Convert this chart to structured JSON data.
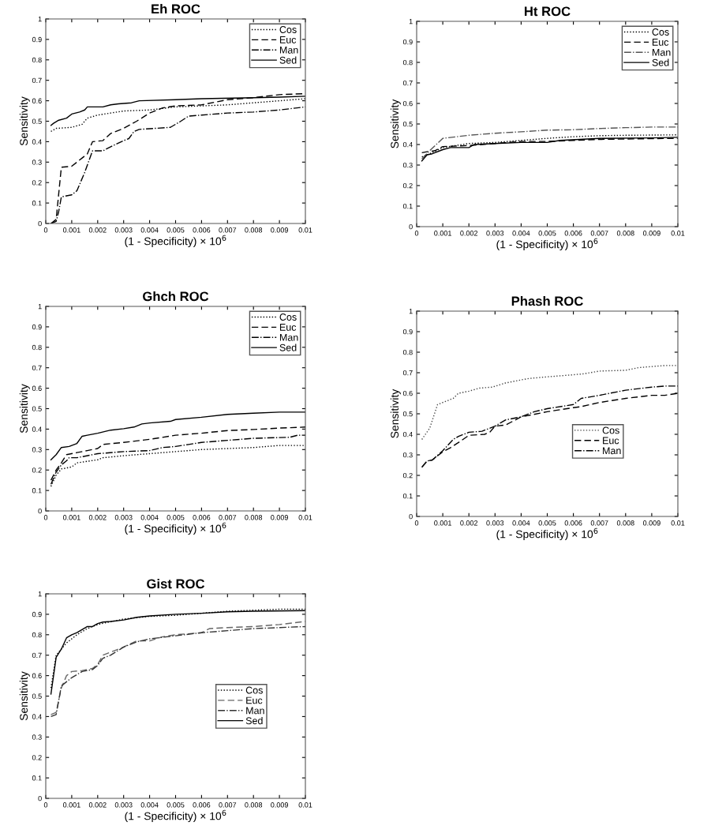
{
  "chart_data": [
    {
      "type": "line",
      "title": "Eh ROC",
      "xlabel": "(1 - Specificity) × 10$^{6}$",
      "ylabel": "Sensitivity",
      "xlim": [
        0,
        0.01
      ],
      "ylim": [
        0,
        1
      ],
      "xticks": [
        0,
        0.001,
        0.002,
        0.003,
        0.004,
        0.005,
        0.006,
        0.007,
        0.008,
        0.009,
        0.01
      ],
      "yticks": [
        0,
        0.1,
        0.2,
        0.3,
        0.4,
        0.5,
        0.6,
        0.7,
        0.8,
        0.9,
        1
      ],
      "legend": "top right",
      "series": [
        {
          "name": "Cos",
          "color": "#000000",
          "line_style": "dotted",
          "x": [
            0.0002,
            0.0004,
            0.001,
            0.0014,
            0.0016,
            0.002,
            0.0025,
            0.003,
            0.004,
            0.005,
            0.006,
            0.007,
            0.008,
            0.009,
            0.01
          ],
          "values": [
            0.45,
            0.465,
            0.47,
            0.485,
            0.515,
            0.53,
            0.54,
            0.55,
            0.555,
            0.57,
            0.575,
            0.58,
            0.59,
            0.6,
            0.61
          ]
        },
        {
          "name": "Euc",
          "color": "#000000",
          "line_style": "dashed",
          "x": [
            0.0002,
            0.0004,
            0.0006,
            0.001,
            0.0014,
            0.0016,
            0.0018,
            0.0022,
            0.0025,
            0.003,
            0.0035,
            0.004,
            0.0045,
            0.005,
            0.006,
            0.007,
            0.008,
            0.009,
            0.01
          ],
          "values": [
            0,
            0.02,
            0.275,
            0.28,
            0.32,
            0.34,
            0.4,
            0.405,
            0.44,
            0.465,
            0.5,
            0.54,
            0.565,
            0.575,
            0.58,
            0.605,
            0.615,
            0.63,
            0.635
          ]
        },
        {
          "name": "Man",
          "color": "#000000",
          "line_style": "dashdot",
          "x": [
            0.0002,
            0.0004,
            0.0005,
            0.0006,
            0.001,
            0.0012,
            0.0015,
            0.0018,
            0.0022,
            0.0025,
            0.003,
            0.0032,
            0.0034,
            0.0036,
            0.0048,
            0.0052,
            0.0055,
            0.006,
            0.007,
            0.008,
            0.009,
            0.01
          ],
          "values": [
            0,
            0.01,
            0.06,
            0.13,
            0.14,
            0.16,
            0.25,
            0.355,
            0.355,
            0.375,
            0.405,
            0.415,
            0.45,
            0.46,
            0.47,
            0.5,
            0.525,
            0.53,
            0.54,
            0.545,
            0.555,
            0.57
          ]
        },
        {
          "name": "Sed",
          "color": "#000000",
          "line_style": "solid",
          "x": [
            0.0002,
            0.0003,
            0.0005,
            0.0008,
            0.001,
            0.0013,
            0.0015,
            0.0016,
            0.0022,
            0.0025,
            0.0028,
            0.0033,
            0.0036,
            0.005,
            0.006,
            0.008,
            0.009,
            0.01
          ],
          "values": [
            0.48,
            0.49,
            0.505,
            0.515,
            0.535,
            0.545,
            0.555,
            0.57,
            0.57,
            0.58,
            0.585,
            0.59,
            0.6,
            0.605,
            0.61,
            0.615,
            0.618,
            0.622
          ]
        }
      ]
    },
    {
      "type": "line",
      "title": "Ht ROC",
      "xlabel": "(1 - Specificity) × 10$^{6}$",
      "ylabel": "Sensitivity",
      "xlim": [
        0,
        0.01
      ],
      "ylim": [
        0,
        1
      ],
      "xticks": [
        0,
        0.001,
        0.002,
        0.003,
        0.004,
        0.005,
        0.006,
        0.007,
        0.008,
        0.009,
        0.01
      ],
      "yticks": [
        0,
        0.1,
        0.2,
        0.3,
        0.4,
        0.5,
        0.6,
        0.7,
        0.8,
        0.9,
        1
      ],
      "legend": "top right",
      "series": [
        {
          "name": "Cos",
          "color": "#000000",
          "line_style": "dotted",
          "x": [
            0.0002,
            0.0005,
            0.001,
            0.0015,
            0.002,
            0.003,
            0.004,
            0.005,
            0.006,
            0.007,
            0.008,
            0.01
          ],
          "values": [
            0.34,
            0.355,
            0.385,
            0.395,
            0.405,
            0.41,
            0.42,
            0.43,
            0.438,
            0.443,
            0.445,
            0.447
          ]
        },
        {
          "name": "Euc",
          "color": "#000000",
          "line_style": "dashed",
          "x": [
            0.0002,
            0.0004,
            0.0007,
            0.001,
            0.002,
            0.003,
            0.004,
            0.005,
            0.006,
            0.007,
            0.008,
            0.01
          ],
          "values": [
            0.36,
            0.365,
            0.37,
            0.39,
            0.395,
            0.405,
            0.415,
            0.415,
            0.42,
            0.425,
            0.427,
            0.43
          ]
        },
        {
          "name": "Man",
          "color": "#555555",
          "line_style": "dashdot",
          "x": [
            0.0002,
            0.0005,
            0.001,
            0.002,
            0.003,
            0.004,
            0.005,
            0.006,
            0.007,
            0.008,
            0.009,
            0.01
          ],
          "values": [
            0.33,
            0.37,
            0.43,
            0.445,
            0.455,
            0.462,
            0.47,
            0.472,
            0.478,
            0.482,
            0.485,
            0.485
          ]
        },
        {
          "name": "Sed",
          "color": "#000000",
          "line_style": "solid",
          "x": [
            0.0002,
            0.0004,
            0.0006,
            0.001,
            0.0013,
            0.002,
            0.0022,
            0.003,
            0.004,
            0.005,
            0.0055,
            0.007,
            0.009,
            0.01
          ],
          "values": [
            0.32,
            0.35,
            0.355,
            0.375,
            0.385,
            0.385,
            0.4,
            0.405,
            0.41,
            0.41,
            0.42,
            0.43,
            0.432,
            0.435
          ]
        }
      ]
    },
    {
      "type": "line",
      "title": "Ghch ROC",
      "xlabel": "(1 - Specificity) × 10$^{6}$",
      "ylabel": "Sensitivity",
      "xlim": [
        0,
        0.01
      ],
      "ylim": [
        0,
        1
      ],
      "xticks": [
        0,
        0.001,
        0.002,
        0.003,
        0.004,
        0.005,
        0.006,
        0.007,
        0.008,
        0.009,
        0.01
      ],
      "yticks": [
        0,
        0.1,
        0.2,
        0.3,
        0.4,
        0.5,
        0.6,
        0.7,
        0.8,
        0.9,
        1
      ],
      "legend": "top right",
      "series": [
        {
          "name": "Cos",
          "color": "#000000",
          "line_style": "dotted",
          "x": [
            0.0002,
            0.0004,
            0.0006,
            0.001,
            0.0012,
            0.002,
            0.0022,
            0.003,
            0.004,
            0.005,
            0.006,
            0.007,
            0.008,
            0.009,
            0.01
          ],
          "values": [
            0.12,
            0.175,
            0.205,
            0.215,
            0.235,
            0.25,
            0.26,
            0.27,
            0.28,
            0.29,
            0.3,
            0.305,
            0.31,
            0.32,
            0.32
          ]
        },
        {
          "name": "Euc",
          "color": "#000000",
          "line_style": "dashed",
          "x": [
            0.0002,
            0.0004,
            0.0006,
            0.0008,
            0.0012,
            0.0016,
            0.002,
            0.0022,
            0.003,
            0.004,
            0.005,
            0.006,
            0.007,
            0.008,
            0.009,
            0.01
          ],
          "values": [
            0.15,
            0.2,
            0.235,
            0.275,
            0.285,
            0.295,
            0.305,
            0.325,
            0.335,
            0.35,
            0.37,
            0.38,
            0.393,
            0.398,
            0.405,
            0.41
          ]
        },
        {
          "name": "Man",
          "color": "#000000",
          "line_style": "dashdot",
          "x": [
            0.0002,
            0.0004,
            0.0006,
            0.0008,
            0.0009,
            0.0012,
            0.002,
            0.003,
            0.004,
            0.0045,
            0.005,
            0.0055,
            0.006,
            0.007,
            0.008,
            0.0094,
            0.0097,
            0.01
          ],
          "values": [
            0.13,
            0.19,
            0.225,
            0.245,
            0.26,
            0.26,
            0.28,
            0.29,
            0.295,
            0.31,
            0.315,
            0.325,
            0.335,
            0.345,
            0.355,
            0.36,
            0.37,
            0.37
          ]
        },
        {
          "name": "Sed",
          "color": "#000000",
          "line_style": "solid",
          "x": [
            0.0002,
            0.0004,
            0.0006,
            0.0009,
            0.0012,
            0.0014,
            0.0016,
            0.002,
            0.0025,
            0.003,
            0.0034,
            0.0037,
            0.004,
            0.0048,
            0.005,
            0.006,
            0.007,
            0.008,
            0.009,
            0.01
          ],
          "values": [
            0.25,
            0.275,
            0.31,
            0.315,
            0.33,
            0.365,
            0.37,
            0.38,
            0.395,
            0.402,
            0.41,
            0.425,
            0.43,
            0.438,
            0.447,
            0.458,
            0.472,
            0.478,
            0.483,
            0.483
          ]
        }
      ]
    },
    {
      "type": "line",
      "title": "Phash ROC",
      "xlabel": "(1 - Specificity) × 10$^{6}$",
      "ylabel": "Sensitivity",
      "xlim": [
        0,
        0.01
      ],
      "ylim": [
        0,
        1
      ],
      "xticks": [
        0,
        0.001,
        0.002,
        0.003,
        0.004,
        0.005,
        0.006,
        0.007,
        0.008,
        0.009,
        0.01
      ],
      "yticks": [
        0,
        0.1,
        0.2,
        0.3,
        0.4,
        0.5,
        0.6,
        0.7,
        0.8,
        0.9,
        1
      ],
      "legend": "bottom right",
      "series": [
        {
          "name": "Cos",
          "color": "#444444",
          "line_style": "dotted",
          "x": [
            0.0002,
            0.0005,
            0.0008,
            0.001,
            0.0014,
            0.0016,
            0.002,
            0.0024,
            0.0029,
            0.0034,
            0.004,
            0.0043,
            0.005,
            0.006,
            0.0064,
            0.007,
            0.008,
            0.0085,
            0.0095,
            0.01
          ],
          "values": [
            0.375,
            0.43,
            0.545,
            0.555,
            0.575,
            0.6,
            0.61,
            0.625,
            0.63,
            0.65,
            0.665,
            0.672,
            0.68,
            0.69,
            0.695,
            0.708,
            0.712,
            0.725,
            0.735,
            0.735
          ]
        },
        {
          "name": "Euc",
          "color": "#000000",
          "line_style": "dashed",
          "x": [
            0.0002,
            0.0004,
            0.0006,
            0.001,
            0.0013,
            0.0016,
            0.002,
            0.0026,
            0.0028,
            0.003,
            0.0034,
            0.004,
            0.005,
            0.006,
            0.0063,
            0.007,
            0.008,
            0.009,
            0.0095,
            0.01
          ],
          "values": [
            0.24,
            0.27,
            0.275,
            0.315,
            0.335,
            0.36,
            0.395,
            0.4,
            0.41,
            0.44,
            0.445,
            0.485,
            0.51,
            0.53,
            0.535,
            0.555,
            0.575,
            0.59,
            0.59,
            0.6
          ]
        },
        {
          "name": "Man",
          "color": "#000000",
          "line_style": "dashdot",
          "x": [
            0.0002,
            0.0004,
            0.0006,
            0.001,
            0.0014,
            0.0016,
            0.002,
            0.0025,
            0.003,
            0.0034,
            0.004,
            0.0045,
            0.005,
            0.006,
            0.0063,
            0.007,
            0.008,
            0.009,
            0.0095,
            0.01
          ],
          "values": [
            0.24,
            0.27,
            0.275,
            0.32,
            0.375,
            0.39,
            0.41,
            0.415,
            0.44,
            0.47,
            0.485,
            0.51,
            0.525,
            0.545,
            0.575,
            0.59,
            0.615,
            0.63,
            0.635,
            0.635
          ]
        }
      ]
    },
    {
      "type": "line",
      "title": "Gist ROC",
      "xlabel": "(1 - Specificity) × 10$^{6}$",
      "ylabel": "Sensitivity",
      "xlim": [
        0,
        0.01
      ],
      "ylim": [
        0,
        1
      ],
      "xticks": [
        0,
        0.001,
        0.002,
        0.003,
        0.004,
        0.005,
        0.006,
        0.007,
        0.008,
        0.009,
        0.01
      ],
      "yticks": [
        0,
        0.1,
        0.2,
        0.3,
        0.4,
        0.5,
        0.6,
        0.7,
        0.8,
        0.9,
        1
      ],
      "legend": "right",
      "series": [
        {
          "name": "Cos",
          "color": "#000000",
          "line_style": "dotted",
          "x": [
            0.0002,
            0.0004,
            0.0006,
            0.0008,
            0.001,
            0.0012,
            0.0016,
            0.002,
            0.003,
            0.004,
            0.005,
            0.006,
            0.007,
            0.008,
            0.009,
            0.01
          ],
          "values": [
            0.54,
            0.7,
            0.73,
            0.76,
            0.78,
            0.8,
            0.83,
            0.85,
            0.877,
            0.89,
            0.895,
            0.905,
            0.915,
            0.92,
            0.925,
            0.925
          ]
        },
        {
          "name": "Euc",
          "color": "#666666",
          "line_style": "dashed",
          "x": [
            0.0002,
            0.0004,
            0.0006,
            0.0008,
            0.001,
            0.0014,
            0.0018,
            0.002,
            0.0022,
            0.0025,
            0.003,
            0.0035,
            0.004,
            0.0045,
            0.005,
            0.006,
            0.0063,
            0.007,
            0.008,
            0.009,
            0.01
          ],
          "values": [
            0.41,
            0.42,
            0.54,
            0.6,
            0.62,
            0.625,
            0.635,
            0.655,
            0.7,
            0.715,
            0.74,
            0.77,
            0.77,
            0.79,
            0.8,
            0.81,
            0.83,
            0.835,
            0.84,
            0.85,
            0.865
          ]
        },
        {
          "name": "Man",
          "color": "#333333",
          "line_style": "dashdot",
          "x": [
            0.0002,
            0.0004,
            0.0006,
            0.0008,
            0.001,
            0.0014,
            0.0018,
            0.002,
            0.0022,
            0.0025,
            0.003,
            0.0035,
            0.004,
            0.005,
            0.006,
            0.007,
            0.008,
            0.009,
            0.01
          ],
          "values": [
            0.4,
            0.41,
            0.55,
            0.57,
            0.59,
            0.62,
            0.63,
            0.65,
            0.685,
            0.7,
            0.74,
            0.765,
            0.78,
            0.795,
            0.81,
            0.82,
            0.83,
            0.835,
            0.84
          ]
        },
        {
          "name": "Sed",
          "color": "#000000",
          "line_style": "solid",
          "x": [
            0.0002,
            0.0004,
            0.0006,
            0.0008,
            0.001,
            0.0012,
            0.0016,
            0.0018,
            0.002,
            0.0022,
            0.0025,
            0.003,
            0.0035,
            0.004,
            0.005,
            0.006,
            0.007,
            0.008,
            0.01
          ],
          "values": [
            0.51,
            0.69,
            0.73,
            0.785,
            0.8,
            0.81,
            0.84,
            0.84,
            0.855,
            0.862,
            0.865,
            0.872,
            0.885,
            0.892,
            0.9,
            0.905,
            0.912,
            0.915,
            0.918
          ]
        }
      ]
    }
  ]
}
